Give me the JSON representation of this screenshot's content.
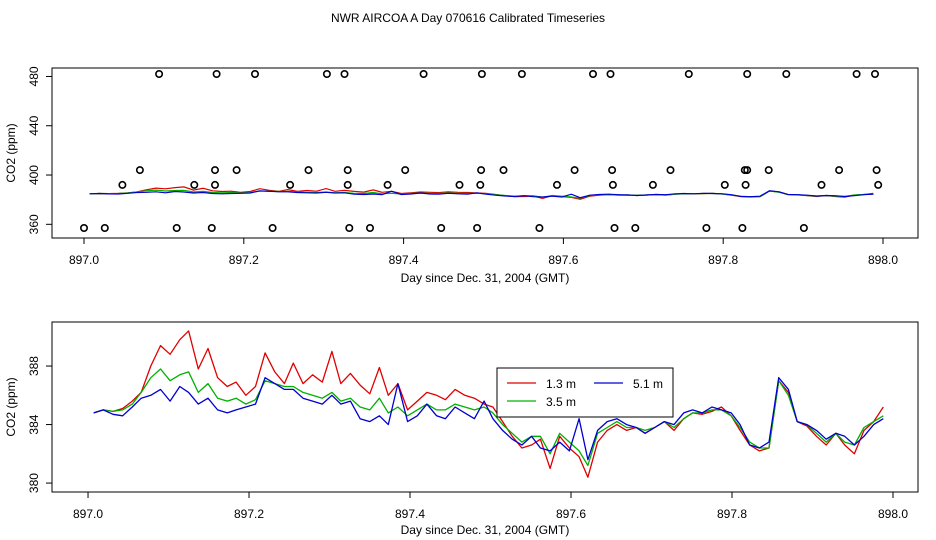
{
  "title": "NWR AIRCOA A  Day 070616  Calibrated Timeseries",
  "chart_data": [
    {
      "type": "scatter+line",
      "xlabel": "Day since Dec. 31, 2004 (GMT)",
      "ylabel": "CO2 (ppm)",
      "xlim": [
        897.0,
        898.0
      ],
      "ylim": [
        357,
        482
      ],
      "xticks": [
        897.0,
        897.2,
        897.4,
        897.6,
        897.8,
        898.0
      ],
      "xtick_labels": [
        "897.0",
        "897.2",
        "897.4",
        "897.6",
        "897.8",
        "898.0"
      ],
      "yticks": [
        360,
        400,
        440,
        480
      ],
      "ytick_labels": [
        "360",
        "400",
        "440",
        "480"
      ],
      "calibration_points": [
        {
          "x": 897.0,
          "y": 357
        },
        {
          "x": 897.026,
          "y": 357
        },
        {
          "x": 897.048,
          "y": 392
        },
        {
          "x": 897.07,
          "y": 404
        },
        {
          "x": 897.094,
          "y": 482
        },
        {
          "x": 897.116,
          "y": 357
        },
        {
          "x": 897.138,
          "y": 392
        },
        {
          "x": 897.16,
          "y": 357
        },
        {
          "x": 897.164,
          "y": 392
        },
        {
          "x": 897.164,
          "y": 404
        },
        {
          "x": 897.166,
          "y": 482
        },
        {
          "x": 897.191,
          "y": 404
        },
        {
          "x": 897.214,
          "y": 482
        },
        {
          "x": 897.236,
          "y": 357
        },
        {
          "x": 897.258,
          "y": 392
        },
        {
          "x": 897.281,
          "y": 404
        },
        {
          "x": 897.304,
          "y": 482
        },
        {
          "x": 897.326,
          "y": 482
        },
        {
          "x": 897.33,
          "y": 392
        },
        {
          "x": 897.33,
          "y": 404
        },
        {
          "x": 897.332,
          "y": 357
        },
        {
          "x": 897.358,
          "y": 357
        },
        {
          "x": 897.38,
          "y": 392
        },
        {
          "x": 897.402,
          "y": 404
        },
        {
          "x": 897.425,
          "y": 482
        },
        {
          "x": 897.447,
          "y": 357
        },
        {
          "x": 897.47,
          "y": 392
        },
        {
          "x": 897.492,
          "y": 357
        },
        {
          "x": 897.496,
          "y": 392
        },
        {
          "x": 897.497,
          "y": 404
        },
        {
          "x": 897.498,
          "y": 482
        },
        {
          "x": 897.525,
          "y": 404
        },
        {
          "x": 897.548,
          "y": 482
        },
        {
          "x": 897.57,
          "y": 357
        },
        {
          "x": 897.592,
          "y": 392
        },
        {
          "x": 897.614,
          "y": 404
        },
        {
          "x": 897.637,
          "y": 482
        },
        {
          "x": 897.659,
          "y": 482
        },
        {
          "x": 897.661,
          "y": 404
        },
        {
          "x": 897.662,
          "y": 392
        },
        {
          "x": 897.664,
          "y": 357
        },
        {
          "x": 897.69,
          "y": 357
        },
        {
          "x": 897.712,
          "y": 392
        },
        {
          "x": 897.734,
          "y": 404
        },
        {
          "x": 897.757,
          "y": 482
        },
        {
          "x": 897.779,
          "y": 357
        },
        {
          "x": 897.802,
          "y": 392
        },
        {
          "x": 897.824,
          "y": 357
        },
        {
          "x": 897.827,
          "y": 404
        },
        {
          "x": 897.828,
          "y": 392
        },
        {
          "x": 897.83,
          "y": 404
        },
        {
          "x": 897.83,
          "y": 482
        },
        {
          "x": 897.857,
          "y": 404
        },
        {
          "x": 897.879,
          "y": 482
        },
        {
          "x": 897.901,
          "y": 357
        },
        {
          "x": 897.923,
          "y": 392
        },
        {
          "x": 897.945,
          "y": 404
        },
        {
          "x": 897.967,
          "y": 482
        },
        {
          "x": 897.99,
          "y": 482
        },
        {
          "x": 897.992,
          "y": 404
        },
        {
          "x": 897.994,
          "y": 392
        }
      ]
    },
    {
      "type": "line",
      "xlabel": "Day since Dec. 31, 2004 (GMT)",
      "ylabel": "CO2 (ppm)",
      "xlim": [
        896.995,
        898.0
      ],
      "ylim": [
        379.8,
        390.6
      ],
      "xticks": [
        897.0,
        897.2,
        897.4,
        897.6,
        897.8,
        898.0
      ],
      "xtick_labels": [
        "897.0",
        "897.2",
        "897.4",
        "897.6",
        "897.8",
        "898.0"
      ],
      "yticks": [
        380,
        384,
        388
      ],
      "ytick_labels": [
        "380",
        "384",
        "388"
      ],
      "series": [
        {
          "name": "1.3 m",
          "color": "#e00000",
          "x": [
            897.007,
            897.019,
            897.031,
            897.043,
            897.055,
            897.066,
            897.078,
            897.09,
            897.102,
            897.114,
            897.125,
            897.137,
            897.149,
            897.161,
            897.173,
            897.184,
            897.196,
            897.208,
            897.22,
            897.232,
            897.244,
            897.255,
            897.267,
            897.279,
            897.291,
            897.303,
            897.314,
            897.326,
            897.338,
            897.35,
            897.362,
            897.373,
            897.385,
            897.397,
            897.409,
            897.421,
            897.433,
            897.444,
            897.456,
            897.468,
            897.48,
            897.492,
            897.503,
            897.515,
            897.527,
            897.539,
            897.551,
            897.562,
            897.574,
            897.586,
            897.598,
            897.61,
            897.621,
            897.633,
            897.645,
            897.657,
            897.669,
            897.681,
            897.692,
            897.704,
            897.716,
            897.728,
            897.74,
            897.751,
            897.763,
            897.775,
            897.787,
            897.799,
            897.81,
            897.822,
            897.834,
            897.846,
            897.858,
            897.87,
            897.881,
            897.893,
            897.905,
            897.917,
            897.929,
            897.94,
            897.952,
            897.964,
            897.976,
            897.988
          ],
          "values": [
            384.8,
            385.0,
            384.9,
            385.1,
            385.6,
            386.2,
            388.0,
            389.4,
            388.8,
            389.8,
            390.4,
            387.8,
            389.2,
            387.2,
            386.6,
            386.9,
            386.0,
            386.6,
            388.9,
            387.6,
            386.8,
            388.2,
            386.8,
            387.4,
            386.9,
            389.0,
            386.8,
            387.5,
            386.7,
            386.1,
            387.9,
            386.0,
            386.8,
            385.0,
            385.6,
            386.2,
            386.0,
            385.7,
            386.4,
            386.0,
            385.8,
            385.4,
            385.2,
            384.2,
            383.2,
            382.4,
            382.6,
            383.0,
            381.0,
            383.2,
            382.4,
            381.8,
            380.4,
            382.8,
            383.6,
            384.0,
            383.6,
            383.8,
            383.4,
            383.8,
            384.2,
            383.6,
            384.4,
            384.8,
            384.7,
            384.9,
            385.2,
            384.6,
            383.6,
            382.6,
            382.2,
            382.4,
            387.0,
            386.2,
            384.2,
            383.9,
            383.2,
            382.6,
            383.4,
            382.6,
            382.0,
            383.6,
            384.2,
            385.2
          ]
        },
        {
          "name": "3.5 m",
          "color": "#00b000",
          "x": [
            897.007,
            897.019,
            897.031,
            897.043,
            897.055,
            897.066,
            897.078,
            897.09,
            897.102,
            897.114,
            897.125,
            897.137,
            897.149,
            897.161,
            897.173,
            897.184,
            897.196,
            897.208,
            897.22,
            897.232,
            897.244,
            897.255,
            897.267,
            897.279,
            897.291,
            897.303,
            897.314,
            897.326,
            897.338,
            897.35,
            897.362,
            897.373,
            897.385,
            897.397,
            897.409,
            897.421,
            897.433,
            897.444,
            897.456,
            897.468,
            897.48,
            897.492,
            897.503,
            897.515,
            897.527,
            897.539,
            897.551,
            897.562,
            897.574,
            897.586,
            897.598,
            897.61,
            897.621,
            897.633,
            897.645,
            897.657,
            897.669,
            897.681,
            897.692,
            897.704,
            897.716,
            897.728,
            897.74,
            897.751,
            897.763,
            897.775,
            897.787,
            897.799,
            897.81,
            897.822,
            897.834,
            897.846,
            897.858,
            897.87,
            897.881,
            897.893,
            897.905,
            897.917,
            897.929,
            897.94,
            897.952,
            897.964,
            897.976,
            897.988
          ],
          "values": [
            384.8,
            385.0,
            384.9,
            385.0,
            385.4,
            386.2,
            387.2,
            387.8,
            387.0,
            387.4,
            387.6,
            386.2,
            386.8,
            385.8,
            385.6,
            385.8,
            385.4,
            385.7,
            387.0,
            386.8,
            386.6,
            386.6,
            386.2,
            386.0,
            385.8,
            386.2,
            385.6,
            385.8,
            385.2,
            385.0,
            385.8,
            384.8,
            385.2,
            384.6,
            385.0,
            385.4,
            385.0,
            385.0,
            385.4,
            385.2,
            385.0,
            385.2,
            384.8,
            384.0,
            383.4,
            382.8,
            383.2,
            383.2,
            382.0,
            383.4,
            382.8,
            382.2,
            381.2,
            383.4,
            383.8,
            384.2,
            383.8,
            383.8,
            383.6,
            383.8,
            384.2,
            383.8,
            384.4,
            384.8,
            384.8,
            385.0,
            385.0,
            384.6,
            383.8,
            382.8,
            382.4,
            382.4,
            387.0,
            386.0,
            384.2,
            384.0,
            383.4,
            382.8,
            383.4,
            382.8,
            382.6,
            383.8,
            384.2,
            384.6
          ]
        },
        {
          "name": "5.1 m",
          "color": "#0000d0",
          "x": [
            897.007,
            897.019,
            897.031,
            897.043,
            897.055,
            897.066,
            897.078,
            897.09,
            897.102,
            897.114,
            897.125,
            897.137,
            897.149,
            897.161,
            897.173,
            897.184,
            897.196,
            897.208,
            897.22,
            897.232,
            897.244,
            897.255,
            897.267,
            897.279,
            897.291,
            897.303,
            897.314,
            897.326,
            897.338,
            897.35,
            897.362,
            897.373,
            897.385,
            897.397,
            897.409,
            897.421,
            897.433,
            897.444,
            897.456,
            897.468,
            897.48,
            897.492,
            897.503,
            897.515,
            897.527,
            897.539,
            897.551,
            897.562,
            897.574,
            897.586,
            897.598,
            897.61,
            897.621,
            897.633,
            897.645,
            897.657,
            897.669,
            897.681,
            897.692,
            897.704,
            897.716,
            897.728,
            897.74,
            897.751,
            897.763,
            897.775,
            897.787,
            897.799,
            897.81,
            897.822,
            897.834,
            897.846,
            897.858,
            897.87,
            897.881,
            897.893,
            897.905,
            897.917,
            897.929,
            897.94,
            897.952,
            897.964,
            897.976,
            897.988
          ],
          "values": [
            384.8,
            385.0,
            384.7,
            384.6,
            385.2,
            385.8,
            386.0,
            386.4,
            385.6,
            386.6,
            386.2,
            385.4,
            385.8,
            385.0,
            384.8,
            385.0,
            385.2,
            385.4,
            387.2,
            386.8,
            386.4,
            386.4,
            385.8,
            385.6,
            385.4,
            386.0,
            385.4,
            385.6,
            384.4,
            384.2,
            384.6,
            384.0,
            386.8,
            384.2,
            384.6,
            385.4,
            384.6,
            384.4,
            385.2,
            384.8,
            384.4,
            385.6,
            384.4,
            383.6,
            383.0,
            382.6,
            383.2,
            382.4,
            382.2,
            382.8,
            382.2,
            384.4,
            381.6,
            383.6,
            384.2,
            384.4,
            384.0,
            383.8,
            383.4,
            383.8,
            384.2,
            384.0,
            384.8,
            385.0,
            384.8,
            385.2,
            385.0,
            384.8,
            384.0,
            382.6,
            382.4,
            382.8,
            387.2,
            386.4,
            384.2,
            384.0,
            383.6,
            383.0,
            383.4,
            383.2,
            382.6,
            383.2,
            384.0,
            384.4
          ]
        }
      ]
    }
  ]
}
